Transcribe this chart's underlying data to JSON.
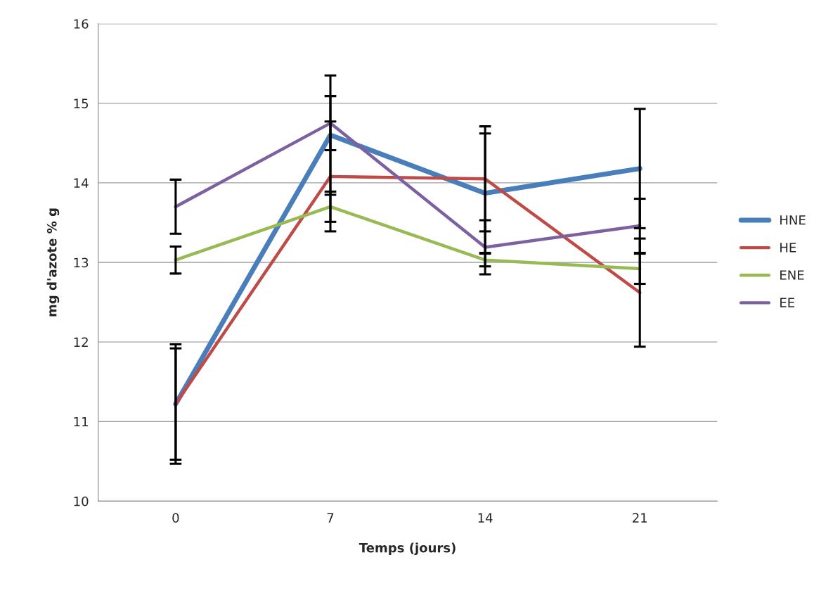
{
  "chart_data": {
    "type": "line",
    "xlabel": "Temps (jours)",
    "ylabel": "mg d'azote % g",
    "categories": [
      "0",
      "7",
      "14",
      "21"
    ],
    "series": [
      {
        "name": "HNE",
        "color": "#4a7ebb",
        "values": [
          11.22,
          14.6,
          13.87,
          14.18
        ],
        "errors": [
          0.75,
          0.75,
          0.75,
          0.75
        ]
      },
      {
        "name": "HE",
        "color": "#be4b48",
        "values": [
          11.22,
          14.08,
          14.05,
          12.62
        ],
        "errors": [
          0.7,
          0.69,
          0.66,
          0.68
        ]
      },
      {
        "name": "ENE",
        "color": "#98b954",
        "values": [
          13.03,
          13.7,
          13.03,
          12.92
        ],
        "errors": [
          0.17,
          0.19,
          0.08,
          0.19
        ]
      },
      {
        "name": "EE",
        "color": "#7d60a0",
        "values": [
          13.7,
          14.75,
          13.19,
          13.46
        ],
        "errors": [
          0.34,
          0.34,
          0.34,
          0.34
        ]
      }
    ],
    "ylim": [
      10,
      16
    ],
    "yticks": [
      10,
      11,
      12,
      13,
      14,
      15,
      16
    ],
    "grid": "y",
    "legend": "right",
    "marker": "none",
    "line_style": "solid"
  }
}
